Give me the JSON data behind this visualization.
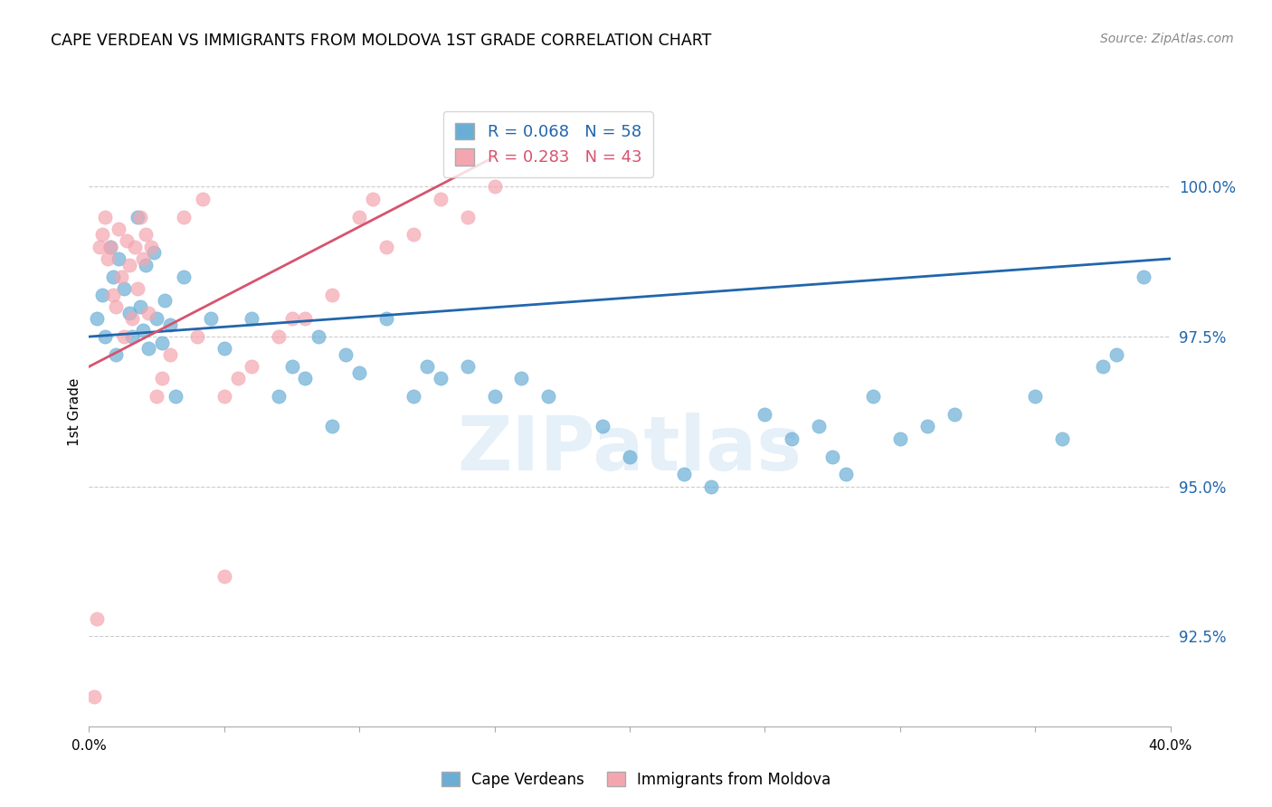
{
  "title": "CAPE VERDEAN VS IMMIGRANTS FROM MOLDOVA 1ST GRADE CORRELATION CHART",
  "source": "Source: ZipAtlas.com",
  "ylabel": "1st Grade",
  "xlim": [
    0.0,
    40.0
  ],
  "ylim": [
    91.0,
    101.5
  ],
  "yticks": [
    92.5,
    95.0,
    97.5,
    100.0
  ],
  "ytick_labels": [
    "92.5%",
    "95.0%",
    "97.5%",
    "100.0%"
  ],
  "legend1_label": "R = 0.068   N = 58",
  "legend2_label": "R = 0.283   N = 43",
  "blue_color": "#6aaed6",
  "pink_color": "#f4a6b0",
  "blue_line_color": "#2166ac",
  "pink_line_color": "#d6546e",
  "watermark": "ZIPatlas",
  "blue_points_x": [
    0.3,
    0.5,
    0.6,
    0.8,
    0.9,
    1.0,
    1.1,
    1.3,
    1.5,
    1.6,
    1.8,
    1.9,
    2.0,
    2.1,
    2.2,
    2.4,
    2.5,
    2.7,
    2.8,
    3.0,
    3.2,
    3.5,
    4.5,
    5.0,
    6.0,
    7.0,
    7.5,
    8.0,
    8.5,
    9.0,
    9.5,
    10.0,
    11.0,
    12.0,
    12.5,
    13.0,
    14.0,
    15.0,
    16.0,
    17.0,
    19.0,
    20.0,
    22.0,
    23.0,
    25.0,
    26.0,
    27.0,
    27.5,
    28.0,
    29.0,
    30.0,
    31.0,
    32.0,
    35.0,
    36.0,
    37.5,
    38.0,
    39.0
  ],
  "blue_points_y": [
    97.8,
    98.2,
    97.5,
    99.0,
    98.5,
    97.2,
    98.8,
    98.3,
    97.9,
    97.5,
    99.5,
    98.0,
    97.6,
    98.7,
    97.3,
    98.9,
    97.8,
    97.4,
    98.1,
    97.7,
    96.5,
    98.5,
    97.8,
    97.3,
    97.8,
    96.5,
    97.0,
    96.8,
    97.5,
    96.0,
    97.2,
    96.9,
    97.8,
    96.5,
    97.0,
    96.8,
    97.0,
    96.5,
    96.8,
    96.5,
    96.0,
    95.5,
    95.2,
    95.0,
    96.2,
    95.8,
    96.0,
    95.5,
    95.2,
    96.5,
    95.8,
    96.0,
    96.2,
    96.5,
    95.8,
    97.0,
    97.2,
    98.5
  ],
  "pink_points_x": [
    0.2,
    0.3,
    0.4,
    0.5,
    0.6,
    0.7,
    0.8,
    0.9,
    1.0,
    1.1,
    1.2,
    1.3,
    1.4,
    1.5,
    1.6,
    1.7,
    1.8,
    1.9,
    2.0,
    2.1,
    2.2,
    2.3,
    2.5,
    2.7,
    3.0,
    3.5,
    4.0,
    4.2,
    5.0,
    5.5,
    6.0,
    7.0,
    8.0,
    9.0,
    10.0,
    11.0,
    12.0,
    13.0,
    14.0,
    15.0,
    5.0,
    7.5,
    10.5
  ],
  "pink_points_y": [
    91.5,
    92.8,
    99.0,
    99.2,
    99.5,
    98.8,
    99.0,
    98.2,
    98.0,
    99.3,
    98.5,
    97.5,
    99.1,
    98.7,
    97.8,
    99.0,
    98.3,
    99.5,
    98.8,
    99.2,
    97.9,
    99.0,
    96.5,
    96.8,
    97.2,
    99.5,
    97.5,
    99.8,
    96.5,
    96.8,
    97.0,
    97.5,
    97.8,
    98.2,
    99.5,
    99.0,
    99.2,
    99.8,
    99.5,
    100.0,
    93.5,
    97.8,
    99.8
  ],
  "blue_trend_x": [
    0.0,
    40.0
  ],
  "blue_trend_y": [
    97.5,
    98.8
  ],
  "pink_trend_x": [
    0.0,
    15.0
  ],
  "pink_trend_y": [
    97.0,
    100.5
  ]
}
